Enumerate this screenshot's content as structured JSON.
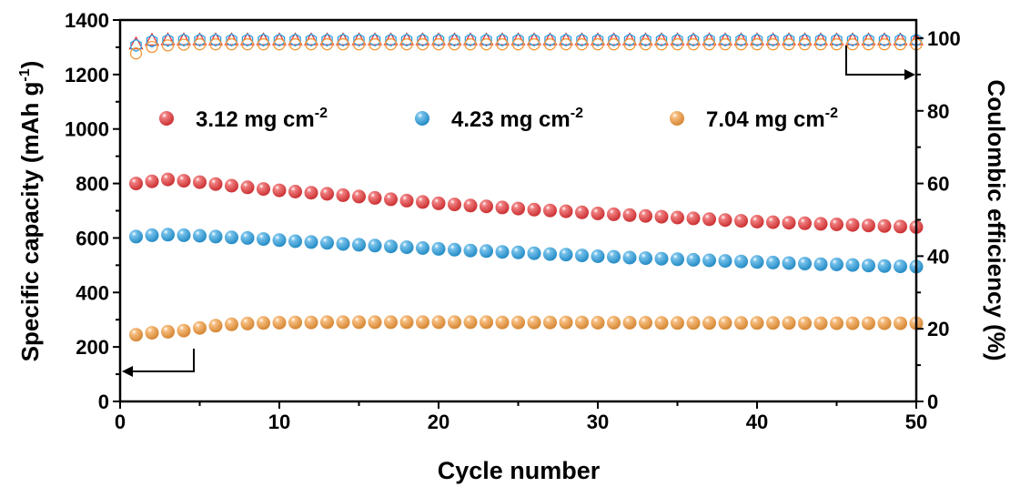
{
  "chart_data": {
    "type": "scatter",
    "xlabel": "Cycle number",
    "ylabel_left": {
      "text": "Specific capacity (mAh g",
      "sup": "-1",
      "close": ")"
    },
    "ylabel_right": "Coulombic efficiency (%)",
    "xlim": [
      0,
      50
    ],
    "ylim_left": [
      0,
      1400
    ],
    "ylim_right": [
      0,
      105
    ],
    "x_ticks": [
      0,
      10,
      20,
      30,
      40,
      50
    ],
    "y_left_ticks": [
      0,
      200,
      400,
      600,
      800,
      1000,
      1200,
      1400
    ],
    "y_right_ticks": [
      0,
      20,
      40,
      60,
      80,
      100
    ],
    "legend_placement": "upper-middle",
    "grid": false,
    "x": [
      1,
      2,
      3,
      4,
      5,
      6,
      7,
      8,
      9,
      10,
      11,
      12,
      13,
      14,
      15,
      16,
      17,
      18,
      19,
      20,
      21,
      22,
      23,
      24,
      25,
      26,
      27,
      28,
      29,
      30,
      31,
      32,
      33,
      34,
      35,
      36,
      37,
      38,
      39,
      40,
      41,
      42,
      43,
      44,
      45,
      46,
      47,
      48,
      49,
      50
    ],
    "series": [
      {
        "name": "3.12 mg cm",
        "name_sup": "-2",
        "color": "#e8383a",
        "capacity": [
          800,
          808,
          815,
          810,
          805,
          798,
          792,
          786,
          780,
          775,
          770,
          766,
          762,
          757,
          752,
          747,
          742,
          737,
          732,
          727,
          723,
          719,
          716,
          712,
          708,
          704,
          701,
          698,
          694,
          690,
          687,
          684,
          681,
          678,
          675,
          672,
          669,
          666,
          663,
          660,
          658,
          656,
          654,
          652,
          650,
          648,
          646,
          644,
          642,
          640
        ],
        "efficiency": [
          98.5,
          99.5,
          99.6,
          99.6,
          99.6,
          99.6,
          99.6,
          99.6,
          99.6,
          99.6,
          99.6,
          99.6,
          99.6,
          99.6,
          99.6,
          99.6,
          99.6,
          99.6,
          99.6,
          99.6,
          99.6,
          99.6,
          99.6,
          99.6,
          99.6,
          99.6,
          99.6,
          99.6,
          99.6,
          99.6,
          99.6,
          99.6,
          99.6,
          99.6,
          99.6,
          99.6,
          99.6,
          99.6,
          99.6,
          99.6,
          99.6,
          99.6,
          99.6,
          99.6,
          99.6,
          99.6,
          99.6,
          99.6,
          99.6,
          99.6
        ]
      },
      {
        "name": "4.23 mg cm",
        "name_sup": "-2",
        "color": "#2a9fe0",
        "capacity": [
          605,
          610,
          612,
          610,
          608,
          605,
          602,
          600,
          596,
          592,
          588,
          585,
          582,
          578,
          575,
          572,
          569,
          566,
          563,
          560,
          557,
          554,
          552,
          549,
          547,
          544,
          541,
          539,
          536,
          533,
          531,
          528,
          526,
          524,
          522,
          520,
          518,
          516,
          514,
          512,
          510,
          508,
          506,
          504,
          503,
          501,
          499,
          497,
          496,
          495
        ],
        "efficiency": [
          98.0,
          99.2,
          99.4,
          99.5,
          99.5,
          99.5,
          99.5,
          99.5,
          99.5,
          99.5,
          99.5,
          99.5,
          99.5,
          99.5,
          99.5,
          99.5,
          99.5,
          99.5,
          99.5,
          99.5,
          99.5,
          99.5,
          99.5,
          99.5,
          99.5,
          99.5,
          99.5,
          99.5,
          99.5,
          99.5,
          99.5,
          99.5,
          99.5,
          99.5,
          99.5,
          99.5,
          99.5,
          99.5,
          99.5,
          99.5,
          99.5,
          99.5,
          99.5,
          99.5,
          99.5,
          99.5,
          99.5,
          99.5,
          99.5,
          99.5
        ]
      },
      {
        "name": "7.04 mg cm",
        "name_sup": "-2",
        "color": "#f2993a",
        "capacity": [
          245,
          252,
          256,
          260,
          270,
          278,
          283,
          286,
          288,
          289,
          290,
          290,
          291,
          291,
          291,
          291,
          291,
          291,
          291,
          291,
          291,
          291,
          291,
          290,
          290,
          290,
          290,
          290,
          290,
          289,
          289,
          289,
          289,
          288,
          288,
          288,
          288,
          288,
          288,
          288,
          288,
          288,
          287,
          287,
          287,
          287,
          287,
          287,
          287,
          287
        ],
        "efficiency": [
          95.8,
          97.6,
          98.0,
          98.2,
          98.3,
          98.3,
          98.3,
          98.3,
          98.3,
          98.3,
          98.3,
          98.3,
          98.3,
          98.3,
          98.3,
          98.3,
          98.3,
          98.3,
          98.3,
          98.3,
          98.3,
          98.3,
          98.3,
          98.3,
          98.3,
          98.3,
          98.3,
          98.3,
          98.3,
          98.3,
          98.3,
          98.3,
          98.3,
          98.3,
          98.3,
          98.3,
          98.3,
          98.3,
          98.3,
          98.3,
          98.3,
          98.3,
          98.3,
          98.3,
          98.3,
          98.3,
          98.3,
          98.3,
          98.3,
          98.3
        ]
      }
    ]
  }
}
